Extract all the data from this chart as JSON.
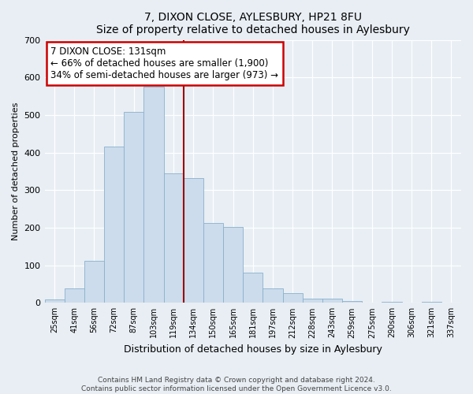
{
  "title": "7, DIXON CLOSE, AYLESBURY, HP21 8FU",
  "subtitle": "Size of property relative to detached houses in Aylesbury",
  "xlabel": "Distribution of detached houses by size in Aylesbury",
  "ylabel": "Number of detached properties",
  "bar_labels": [
    "25sqm",
    "41sqm",
    "56sqm",
    "72sqm",
    "87sqm",
    "103sqm",
    "119sqm",
    "134sqm",
    "150sqm",
    "165sqm",
    "181sqm",
    "197sqm",
    "212sqm",
    "228sqm",
    "243sqm",
    "259sqm",
    "275sqm",
    "290sqm",
    "306sqm",
    "321sqm",
    "337sqm"
  ],
  "bar_values": [
    8,
    38,
    112,
    415,
    508,
    575,
    345,
    333,
    212,
    202,
    80,
    38,
    25,
    12,
    12,
    5,
    0,
    3,
    0,
    3,
    0
  ],
  "bar_color": "#ccdcec",
  "bar_edge_color": "#8ab0cc",
  "ylim": [
    0,
    700
  ],
  "yticks": [
    0,
    100,
    200,
    300,
    400,
    500,
    600,
    700
  ],
  "vline_index": 6.5,
  "vline_color": "#990000",
  "annotation_title": "7 DIXON CLOSE: 131sqm",
  "annotation_line1": "← 66% of detached houses are smaller (1,900)",
  "annotation_line2": "34% of semi-detached houses are larger (973) →",
  "annotation_box_color": "#ffffff",
  "annotation_border_color": "#cc0000",
  "footer1": "Contains HM Land Registry data © Crown copyright and database right 2024.",
  "footer2": "Contains public sector information licensed under the Open Government Licence v3.0.",
  "bg_color": "#e8eef4",
  "plot_bg_color": "#e8eef4"
}
